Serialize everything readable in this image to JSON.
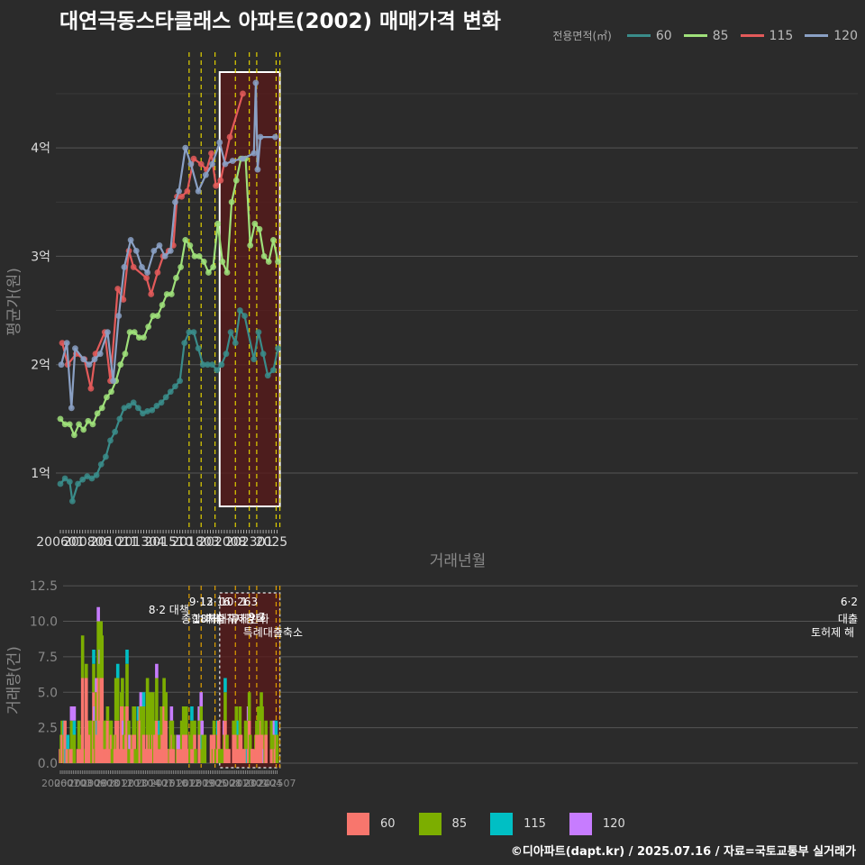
{
  "title": "대연극동스타클래스 아파트(2002) 매매가격 변화",
  "caption": "©디아파트(dapt.kr) / 2025.07.16 / 자료=국토교통부 실거래가",
  "legend_title": "전용면적(㎡)",
  "colors": {
    "background": "#2b2b2b",
    "grid": "#555555",
    "line_60": "#3a8c8a",
    "line_85": "#9fe07a",
    "line_115": "#e35a5a",
    "line_120": "#8aa0c4",
    "bar_60": "#f8766d",
    "bar_85": "#7cae00",
    "bar_115": "#00bfc4",
    "bar_120": "#c77cff",
    "policy_line": "#e0d000",
    "highlight": "#5a1a1a"
  },
  "chart_data": [
    {
      "type": "line",
      "xlabel": "거래년월",
      "ylabel": "평균가(원)",
      "x_ticks": [
        "200601",
        "200806",
        "201011",
        "201304",
        "201510",
        "201803",
        "202008",
        "202301",
        "2025"
      ],
      "y_ticks": [
        "1억",
        "2억",
        "3억",
        "4억"
      ],
      "ylim": [
        0.5,
        4.85
      ],
      "y_unit": "억",
      "policy_dates": [
        "2017-08",
        "2018-09",
        "2019-12",
        "2021-10",
        "2023-01",
        "2023-09",
        "2025-06",
        "2025-10"
      ],
      "highlight_range": [
        "2020-05",
        "2025-10"
      ],
      "series": [
        {
          "name": "60",
          "points": [
            [
              "2006-01",
              0.9
            ],
            [
              "2006-06",
              0.95
            ],
            [
              "2006-11",
              0.92
            ],
            [
              "2007-02",
              0.74
            ],
            [
              "2007-08",
              0.9
            ],
            [
              "2008-01",
              0.94
            ],
            [
              "2008-06",
              0.97
            ],
            [
              "2008-11",
              0.95
            ],
            [
              "2009-04",
              0.98
            ],
            [
              "2009-09",
              1.08
            ],
            [
              "2010-02",
              1.15
            ],
            [
              "2010-07",
              1.3
            ],
            [
              "2010-12",
              1.38
            ],
            [
              "2011-05",
              1.5
            ],
            [
              "2011-10",
              1.6
            ],
            [
              "2012-03",
              1.62
            ],
            [
              "2012-08",
              1.65
            ],
            [
              "2013-01",
              1.6
            ],
            [
              "2013-06",
              1.55
            ],
            [
              "2013-11",
              1.57
            ],
            [
              "2014-04",
              1.58
            ],
            [
              "2014-09",
              1.62
            ],
            [
              "2015-02",
              1.65
            ],
            [
              "2015-07",
              1.7
            ],
            [
              "2015-12",
              1.75
            ],
            [
              "2016-05",
              1.8
            ],
            [
              "2016-10",
              1.85
            ],
            [
              "2017-03",
              2.2
            ],
            [
              "2017-08",
              2.3
            ],
            [
              "2018-01",
              2.3
            ],
            [
              "2018-06",
              2.15
            ],
            [
              "2018-11",
              2.0
            ],
            [
              "2019-04",
              2.0
            ],
            [
              "2019-09",
              2.0
            ],
            [
              "2020-02",
              1.95
            ],
            [
              "2020-07",
              2.0
            ],
            [
              "2020-12",
              2.1
            ],
            [
              "2021-05",
              2.3
            ],
            [
              "2021-10",
              2.2
            ],
            [
              "2022-03",
              2.5
            ],
            [
              "2022-08",
              2.45
            ],
            [
              "2023-06",
              2.05
            ],
            [
              "2023-11",
              2.3
            ],
            [
              "2024-04",
              2.1
            ],
            [
              "2024-09",
              1.9
            ],
            [
              "2025-03",
              1.95
            ],
            [
              "2025-08",
              2.15
            ]
          ]
        },
        {
          "name": "85",
          "points": [
            [
              "2006-01",
              1.5
            ],
            [
              "2006-06",
              1.45
            ],
            [
              "2006-11",
              1.45
            ],
            [
              "2007-04",
              1.35
            ],
            [
              "2007-09",
              1.45
            ],
            [
              "2008-02",
              1.4
            ],
            [
              "2008-07",
              1.48
            ],
            [
              "2008-12",
              1.45
            ],
            [
              "2009-05",
              1.55
            ],
            [
              "2009-10",
              1.6
            ],
            [
              "2010-03",
              1.7
            ],
            [
              "2010-08",
              1.75
            ],
            [
              "2011-01",
              1.85
            ],
            [
              "2011-06",
              2.0
            ],
            [
              "2011-11",
              2.1
            ],
            [
              "2012-04",
              2.3
            ],
            [
              "2012-09",
              2.3
            ],
            [
              "2013-02",
              2.25
            ],
            [
              "2013-07",
              2.25
            ],
            [
              "2013-12",
              2.35
            ],
            [
              "2014-05",
              2.45
            ],
            [
              "2014-10",
              2.45
            ],
            [
              "2015-03",
              2.55
            ],
            [
              "2015-08",
              2.65
            ],
            [
              "2016-01",
              2.65
            ],
            [
              "2016-06",
              2.8
            ],
            [
              "2016-11",
              2.9
            ],
            [
              "2017-04",
              3.15
            ],
            [
              "2017-09",
              3.1
            ],
            [
              "2018-02",
              3.0
            ],
            [
              "2018-07",
              3.0
            ],
            [
              "2018-12",
              2.95
            ],
            [
              "2019-05",
              2.85
            ],
            [
              "2019-10",
              2.9
            ],
            [
              "2020-03",
              3.3
            ],
            [
              "2020-08",
              2.95
            ],
            [
              "2021-01",
              2.85
            ],
            [
              "2021-06",
              3.5
            ],
            [
              "2021-11",
              3.7
            ],
            [
              "2022-04",
              3.9
            ],
            [
              "2022-09",
              3.9
            ],
            [
              "2023-02",
              3.1
            ],
            [
              "2023-07",
              3.3
            ],
            [
              "2023-12",
              3.25
            ],
            [
              "2024-05",
              3.0
            ],
            [
              "2024-10",
              2.95
            ],
            [
              "2025-03",
              3.15
            ],
            [
              "2025-08",
              2.95
            ]
          ]
        },
        {
          "name": "115",
          "points": [
            [
              "2006-03",
              2.2
            ],
            [
              "2006-09",
              2.0
            ],
            [
              "2007-06",
              2.1
            ],
            [
              "2008-03",
              2.05
            ],
            [
              "2008-10",
              1.78
            ],
            [
              "2009-03",
              2.1
            ],
            [
              "2010-01",
              2.3
            ],
            [
              "2010-07",
              1.85
            ],
            [
              "2011-03",
              2.7
            ],
            [
              "2011-09",
              2.6
            ],
            [
              "2012-03",
              3.05
            ],
            [
              "2012-08",
              2.9
            ],
            [
              "2013-10",
              2.8
            ],
            [
              "2014-03",
              2.65
            ],
            [
              "2014-10",
              2.85
            ],
            [
              "2015-04",
              3.0
            ],
            [
              "2015-10",
              3.05
            ],
            [
              "2016-03",
              3.1
            ],
            [
              "2016-07",
              3.55
            ],
            [
              "2016-12",
              3.55
            ],
            [
              "2017-06",
              3.6
            ],
            [
              "2018-01",
              3.9
            ],
            [
              "2018-09",
              3.85
            ],
            [
              "2019-03",
              3.8
            ],
            [
              "2019-08",
              3.95
            ],
            [
              "2020-01",
              3.65
            ],
            [
              "2020-06",
              3.7
            ],
            [
              "2021-04",
              4.1
            ],
            [
              "2022-06",
              4.5
            ]
          ]
        },
        {
          "name": "120",
          "points": [
            [
              "2006-02",
              2.0
            ],
            [
              "2006-08",
              2.2
            ],
            [
              "2007-01",
              1.6
            ],
            [
              "2007-05",
              2.15
            ],
            [
              "2008-02",
              2.05
            ],
            [
              "2008-08",
              2.0
            ],
            [
              "2009-02",
              2.05
            ],
            [
              "2009-08",
              2.1
            ],
            [
              "2010-04",
              2.3
            ],
            [
              "2010-10",
              1.85
            ],
            [
              "2011-04",
              2.45
            ],
            [
              "2011-10",
              2.9
            ],
            [
              "2012-05",
              3.15
            ],
            [
              "2012-11",
              3.05
            ],
            [
              "2013-05",
              2.9
            ],
            [
              "2013-11",
              2.85
            ],
            [
              "2014-06",
              3.05
            ],
            [
              "2014-12",
              3.1
            ],
            [
              "2015-06",
              3.0
            ],
            [
              "2015-12",
              3.05
            ],
            [
              "2016-05",
              3.5
            ],
            [
              "2016-09",
              3.6
            ],
            [
              "2017-04",
              4.0
            ],
            [
              "2017-10",
              3.85
            ],
            [
              "2018-06",
              3.6
            ],
            [
              "2019-02",
              3.75
            ],
            [
              "2019-09",
              3.85
            ],
            [
              "2020-05",
              4.05
            ],
            [
              "2020-11",
              3.85
            ],
            [
              "2021-07",
              3.88
            ],
            [
              "2022-06",
              3.9
            ],
            [
              "2023-06",
              3.95
            ],
            [
              "2023-08",
              4.6
            ],
            [
              "2023-10",
              3.8
            ],
            [
              "2024-01",
              4.1
            ],
            [
              "2025-05",
              4.1
            ]
          ]
        }
      ]
    },
    {
      "type": "bar",
      "xlabel": "",
      "ylabel": "거래량(건)",
      "x_ticks": [
        "200601",
        "200703",
        "200806",
        "200908",
        "201011",
        "201201",
        "201304",
        "201407",
        "201510",
        "201612",
        "201803",
        "201905",
        "202008",
        "202110",
        "202301",
        "202404",
        "202507"
      ],
      "y_ticks": [
        "0.0",
        "2.5",
        "5.0",
        "7.5",
        "10.0",
        "12.5"
      ],
      "ylim": [
        0,
        12.5
      ],
      "stacked": true,
      "series_names": [
        "60",
        "85",
        "115",
        "120"
      ],
      "policies": [
        {
          "date": "2017-08",
          "line1": "8·2 대책",
          "line2": ""
        },
        {
          "date": "2018-09",
          "line1": "9·13",
          "line2": "종합대책"
        },
        {
          "date": "2019-12",
          "line1": "12·16",
          "line2": "18차대책"
        },
        {
          "date": "2021-10",
          "line1": "10·26",
          "line2": "대출규제강화"
        },
        {
          "date": "2023-01",
          "line1": "1·3",
          "line2": "규제완화"
        },
        {
          "date": "2023-09",
          "line1": "9·7",
          "line2": "특례대출축소"
        },
        {
          "date": "2025-06",
          "line1": "",
          "line2": "토허제 해"
        },
        {
          "date": "2025-10",
          "line1": "6·2",
          "line2": "대출"
        }
      ]
    }
  ]
}
